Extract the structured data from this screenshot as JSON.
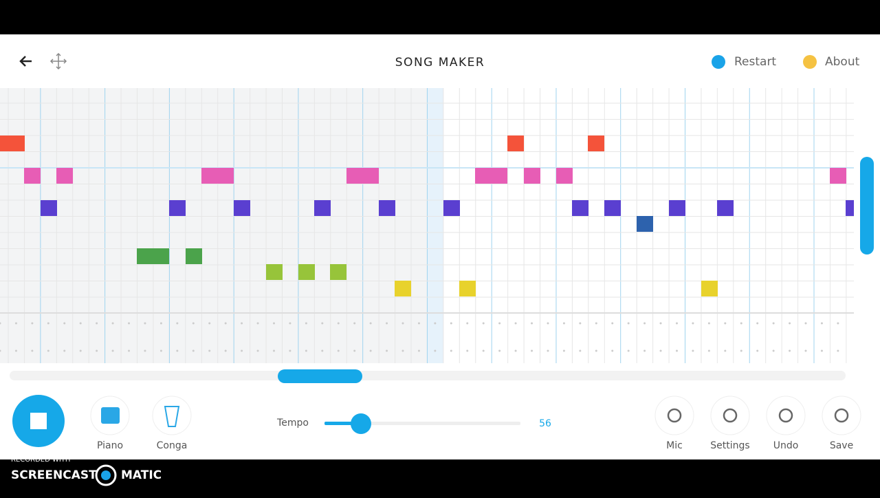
{
  "header": {
    "title": "SONG MAKER",
    "restart": "Restart",
    "about": "About"
  },
  "instruments": {
    "melody": "Piano",
    "rhythm": "Conga"
  },
  "tempo": {
    "label": "Tempo",
    "value": "56"
  },
  "actions": {
    "mic": "Mic",
    "settings": "Settings",
    "undo": "Undo",
    "save": "Save"
  },
  "watermark": {
    "recorded": "RECORDED WITH",
    "brand_left": "SCREENCAST",
    "brand_right": "MATIC"
  }
}
